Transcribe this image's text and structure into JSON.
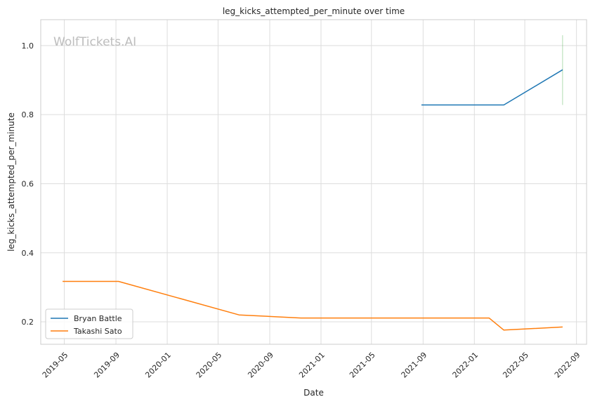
{
  "chart_data": {
    "type": "line",
    "title": "leg_kicks_attempted_per_minute over time",
    "xlabel": "Date",
    "ylabel": "leg_kicks_attempted_per_minute",
    "watermark": "WolfTickets.AI",
    "x_ticks": [
      "2019-05",
      "2019-09",
      "2020-01",
      "2020-05",
      "2020-09",
      "2021-01",
      "2021-05",
      "2021-09",
      "2022-01",
      "2022-05",
      "2022-09"
    ],
    "y_ticks": [
      "0.2",
      "0.4",
      "0.6",
      "0.8",
      "1.0"
    ],
    "xlim": [
      "2019-03-06",
      "2022-09-25"
    ],
    "ylim": [
      0.135,
      1.075
    ],
    "grid": true,
    "legend_position": "lower-left",
    "series": [
      {
        "name": "Bryan Battle",
        "color": "#1f77b4",
        "points": [
          {
            "x": "2021-08-28",
            "y": 0.828
          },
          {
            "x": "2022-03-12",
            "y": 0.828
          },
          {
            "x": "2022-07-30",
            "y": 0.93
          }
        ]
      },
      {
        "name": "Takashi Sato",
        "color": "#ff7f0e",
        "points": [
          {
            "x": "2019-04-27",
            "y": 0.317
          },
          {
            "x": "2019-09-07",
            "y": 0.317
          },
          {
            "x": "2020-06-20",
            "y": 0.22
          },
          {
            "x": "2020-11-14",
            "y": 0.211
          },
          {
            "x": "2022-02-05",
            "y": 0.211
          },
          {
            "x": "2022-03-12",
            "y": 0.176
          },
          {
            "x": "2022-07-30",
            "y": 0.185
          }
        ]
      }
    ],
    "vline": {
      "x": "2022-07-30",
      "y_range": [
        0.828,
        1.03
      ],
      "color": "#2ca02c"
    }
  }
}
